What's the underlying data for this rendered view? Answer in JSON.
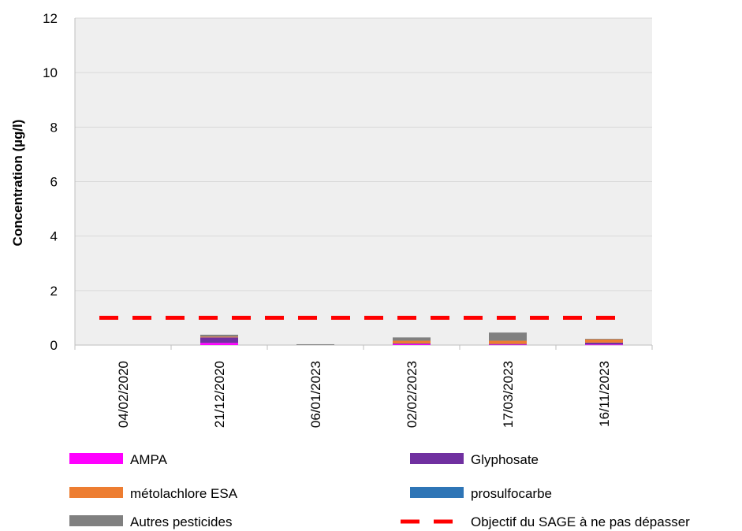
{
  "chart_data": {
    "type": "bar",
    "stacked": true,
    "title": "",
    "xlabel": "",
    "ylabel": "Concentration (µg/l)",
    "ylim": [
      0,
      12
    ],
    "yticks": [
      0,
      2,
      4,
      6,
      8,
      10,
      12
    ],
    "grid": true,
    "legend_position": "bottom",
    "categories": [
      "04/02/2020",
      "21/12/2020",
      "06/01/2023",
      "02/02/2023",
      "17/03/2023",
      "16/11/2023"
    ],
    "series": [
      {
        "name": "AMPA",
        "color": "#ff00ff",
        "values": [
          0,
          0.08,
          0,
          0.04,
          0.02,
          0.02
        ]
      },
      {
        "name": "Glyphosate",
        "color": "#7030a0",
        "values": [
          0,
          0.2,
          0,
          0.02,
          0.02,
          0.07
        ]
      },
      {
        "name": "métolachlore ESA",
        "color": "#ed7d31",
        "values": [
          0,
          0.03,
          0,
          0.1,
          0.12,
          0.12
        ]
      },
      {
        "name": "prosulfocarbe",
        "color": "#2e75b6",
        "values": [
          0,
          0,
          0,
          0,
          0,
          0
        ]
      },
      {
        "name": "Autres pesticides",
        "color": "#808080",
        "values": [
          0,
          0.07,
          0.03,
          0.12,
          0.3,
          0.02
        ]
      }
    ],
    "threshold": {
      "name": "Objectif du SAGE à ne pas dépasser",
      "value": 1,
      "color": "#ff0000",
      "style": "dashed"
    }
  }
}
